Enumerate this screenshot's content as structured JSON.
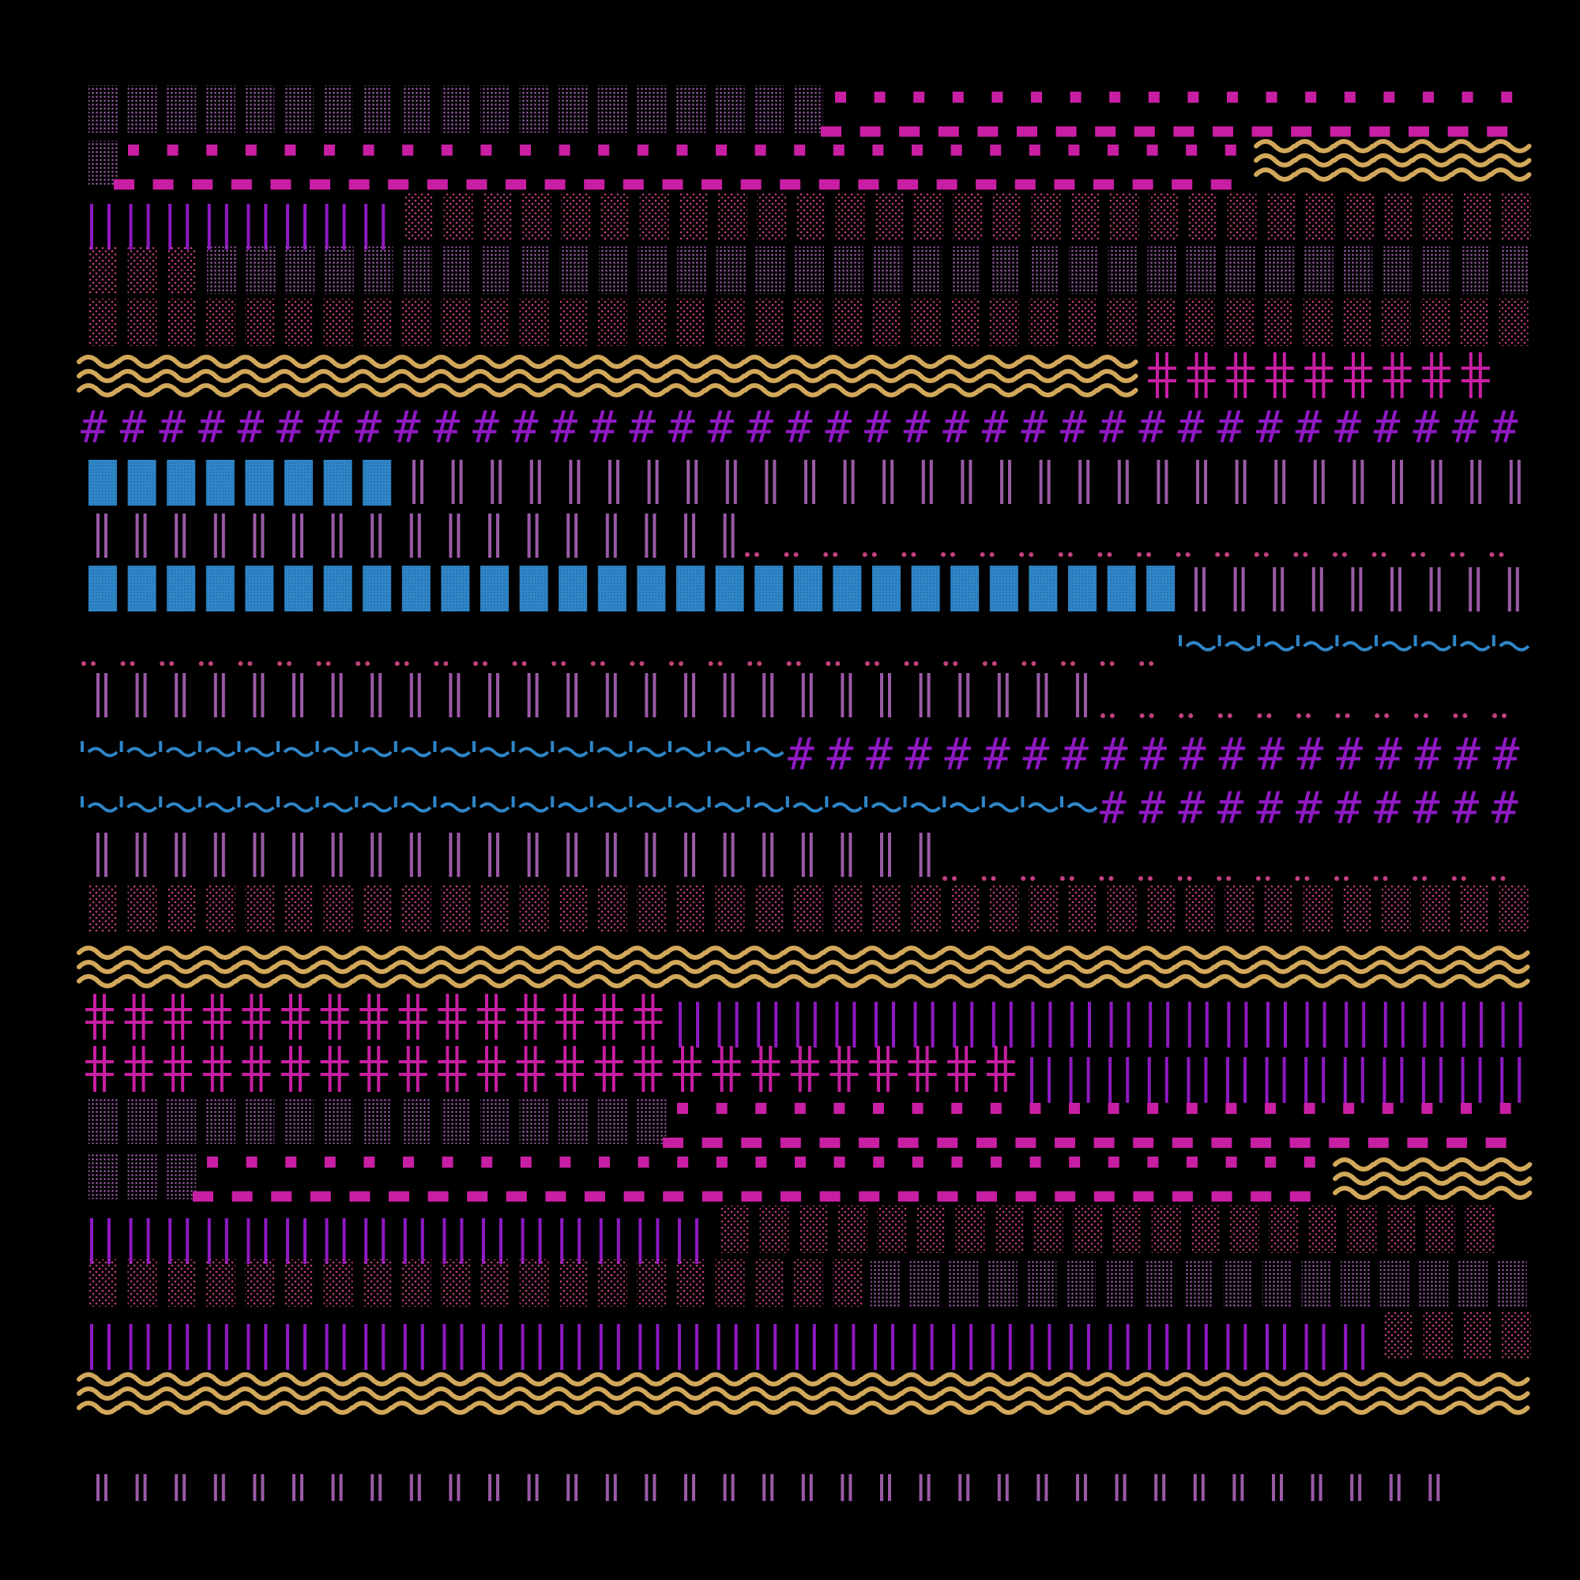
{
  "canvas": {
    "background": "#000000"
  },
  "palette": {
    "mauve": "#9a5aa6",
    "violet": "#8f19c2",
    "magenta": "#c81ea3",
    "pink": "#c2407e",
    "blue": "#2f86c8",
    "gold": "#d2a85a"
  },
  "icons": [
    "dotted-block-icon",
    "square-dot-icon",
    "dash-icon",
    "wave-icon",
    "vertical-bar-icon",
    "double-bar-icon",
    "hash-icon",
    "cross-icon",
    "dot-pair-icon",
    "tilde-icon"
  ]
}
